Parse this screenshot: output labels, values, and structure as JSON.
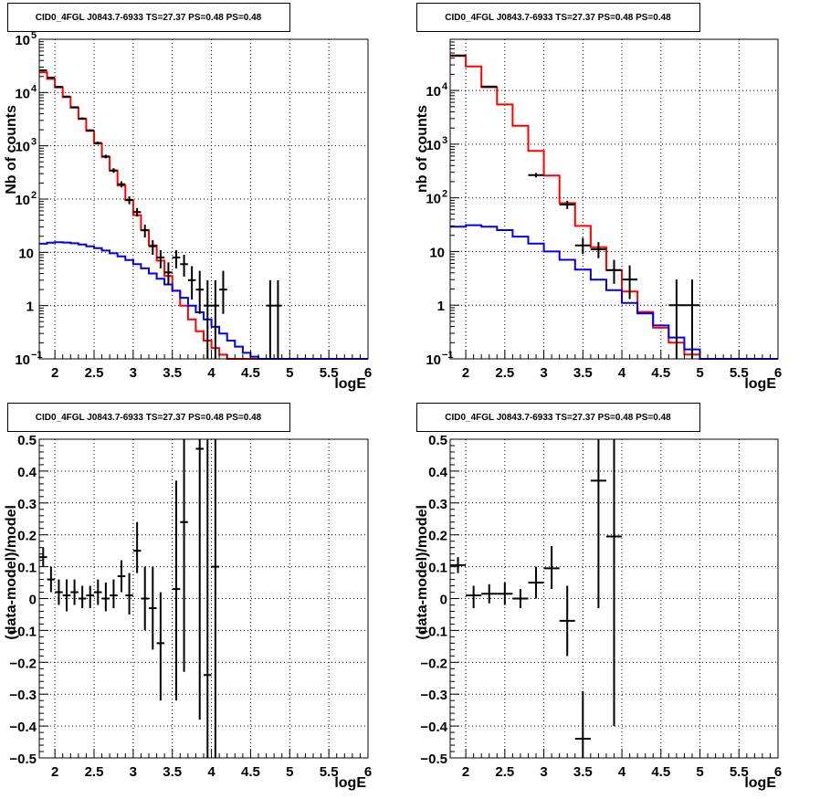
{
  "chart_data": [
    {
      "type": "histogram",
      "title": "CID0_4FGL J0843.7-6933 TS=27.37 PS=0.48 PS=0.48",
      "xlabel": "logE",
      "ylabel": "Nb of counts",
      "yscale": "log",
      "xlim": [
        1.8,
        6.0
      ],
      "ylim": [
        0.1,
        100000
      ],
      "grid": true,
      "xticks": [
        {
          "v": 2,
          "t": "2"
        },
        {
          "v": 2.5,
          "t": "2.5"
        },
        {
          "v": 3,
          "t": "3"
        },
        {
          "v": 3.5,
          "t": "3.5"
        },
        {
          "v": 4,
          "t": "4"
        },
        {
          "v": 4.5,
          "t": "4.5"
        },
        {
          "v": 5,
          "t": "5"
        },
        {
          "v": 5.5,
          "t": "5.5"
        },
        {
          "v": 6,
          "t": "6"
        }
      ],
      "yticks": [
        {
          "v": 0.1,
          "b": "10",
          "e": "−1"
        },
        {
          "v": 1,
          "b": "1",
          "e": ""
        },
        {
          "v": 10,
          "b": "10",
          "e": ""
        },
        {
          "v": 100,
          "b": "10",
          "e": "2"
        },
        {
          "v": 1000,
          "b": "10",
          "e": "3"
        },
        {
          "v": 10000,
          "b": "10",
          "e": "4"
        },
        {
          "v": 100000,
          "b": "10",
          "e": "5"
        }
      ],
      "series": [
        {
          "role": "model-total",
          "color": "#ff0000",
          "x0": 1.8,
          "dx": 0.1,
          "values": [
            24000,
            18000,
            12500,
            8200,
            5200,
            3200,
            1900,
            1100,
            620,
            340,
            180,
            95,
            50,
            26,
            13.5,
            7.0,
            3.6,
            1.9,
            1.0,
            0.55,
            0.33,
            0.22,
            0.16,
            0.12,
            0.1,
            0.1,
            0.1,
            0.1,
            0.1,
            0.1,
            0.1,
            0.1,
            0.1,
            0.1,
            0.1,
            0.1,
            0.1,
            0.1,
            0.1,
            0.1,
            0.1,
            0.1
          ]
        },
        {
          "role": "model-source",
          "color": "#0000ee",
          "x0": 1.8,
          "dx": 0.1,
          "values": [
            14.5,
            15.2,
            15.5,
            15.3,
            14.8,
            14.0,
            13.0,
            12.0,
            10.8,
            9.6,
            8.4,
            7.2,
            6.0,
            5.0,
            4.0,
            3.2,
            2.5,
            1.9,
            1.4,
            1.0,
            0.75,
            0.55,
            0.4,
            0.3,
            0.22,
            0.17,
            0.13,
            0.11,
            0.1,
            0.1,
            0.1,
            0.1,
            0.1,
            0.1,
            0.1,
            0.1,
            0.1,
            0.1,
            0.1,
            0.1,
            0.1,
            0.1
          ]
        }
      ],
      "points": [
        {
          "x": 1.85,
          "y": 26000,
          "lo": 25000,
          "hi": 27000
        },
        {
          "x": 1.95,
          "y": 19000,
          "lo": 18300,
          "hi": 19700
        },
        {
          "x": 2.05,
          "y": 12800,
          "lo": 12300,
          "hi": 13300
        },
        {
          "x": 2.15,
          "y": 8400,
          "lo": 8100,
          "hi": 8700
        },
        {
          "x": 2.25,
          "y": 5300,
          "lo": 5100,
          "hi": 5500
        },
        {
          "x": 2.35,
          "y": 3250,
          "lo": 3100,
          "hi": 3400
        },
        {
          "x": 2.45,
          "y": 1950,
          "lo": 1860,
          "hi": 2040
        },
        {
          "x": 2.55,
          "y": 1130,
          "lo": 1060,
          "hi": 1200
        },
        {
          "x": 2.65,
          "y": 630,
          "lo": 580,
          "hi": 680
        },
        {
          "x": 2.75,
          "y": 345,
          "lo": 310,
          "hi": 380
        },
        {
          "x": 2.85,
          "y": 190,
          "lo": 165,
          "hi": 215
        },
        {
          "x": 2.95,
          "y": 96,
          "lo": 80,
          "hi": 112
        },
        {
          "x": 3.05,
          "y": 57,
          "lo": 47,
          "hi": 68
        },
        {
          "x": 3.15,
          "y": 26,
          "lo": 19,
          "hi": 33
        },
        {
          "x": 3.25,
          "y": 13,
          "lo": 9,
          "hi": 17
        },
        {
          "x": 3.35,
          "y": 8,
          "lo": 5,
          "hi": 11
        },
        {
          "x": 3.45,
          "y": 4.2,
          "lo": 2.4,
          "hi": 6.5
        },
        {
          "x": 3.55,
          "y": 8,
          "lo": 5,
          "hi": 11
        },
        {
          "x": 3.65,
          "y": 6,
          "lo": 3.5,
          "hi": 9
        },
        {
          "x": 3.75,
          "y": 3,
          "lo": 1.3,
          "hi": 5.5
        },
        {
          "x": 3.85,
          "y": 2,
          "lo": 0.7,
          "hi": 4.5
        },
        {
          "x": 3.95,
          "y": 1,
          "lo": 0.1,
          "hi": 3.0
        },
        {
          "x": 4.05,
          "y": 1,
          "lo": 0.1,
          "hi": 3.0
        },
        {
          "x": 4.15,
          "y": 2,
          "lo": 0.7,
          "hi": 4.5
        },
        {
          "x": 4.75,
          "y": 1,
          "lo": 0.1,
          "hi": 3.0
        },
        {
          "x": 4.85,
          "y": 1,
          "lo": 0.1,
          "hi": 3.0
        }
      ],
      "xbar": 0.05
    },
    {
      "type": "histogram",
      "title": "CID0_4FGL J0843.7-6933 TS=27.37 PS=0.48 PS=0.48",
      "xlabel": "logE",
      "ylabel": "nb of counts",
      "yscale": "log",
      "xlim": [
        1.8,
        6.0
      ],
      "ylim": [
        0.1,
        90000
      ],
      "grid": true,
      "xticks": [
        {
          "v": 2,
          "t": "2"
        },
        {
          "v": 2.5,
          "t": "2.5"
        },
        {
          "v": 3,
          "t": "3"
        },
        {
          "v": 3.5,
          "t": "3.5"
        },
        {
          "v": 4,
          "t": "4"
        },
        {
          "v": 4.5,
          "t": "4.5"
        },
        {
          "v": 5,
          "t": "5"
        },
        {
          "v": 5.5,
          "t": "5.5"
        },
        {
          "v": 6,
          "t": "6"
        }
      ],
      "yticks": [
        {
          "v": 0.1,
          "b": "10",
          "e": "−1"
        },
        {
          "v": 1,
          "b": "1",
          "e": ""
        },
        {
          "v": 10,
          "b": "10",
          "e": ""
        },
        {
          "v": 100,
          "b": "10",
          "e": "2"
        },
        {
          "v": 1000,
          "b": "10",
          "e": "3"
        },
        {
          "v": 10000,
          "b": "10",
          "e": "4"
        }
      ],
      "series": [
        {
          "role": "model-total",
          "color": "#ff0000",
          "x0": 1.8,
          "dx": 0.2,
          "values": [
            44000,
            28000,
            11500,
            5500,
            2200,
            750,
            260,
            80,
            30,
            12,
            4.5,
            1.8,
            0.75,
            0.38,
            0.2,
            0.12,
            0.1,
            0.1,
            0.1,
            0.1,
            0.1
          ]
        },
        {
          "role": "model-source",
          "color": "#0000ee",
          "x0": 1.8,
          "dx": 0.2,
          "values": [
            29,
            31,
            29,
            25,
            19,
            14,
            10,
            7,
            4.6,
            3.0,
            1.9,
            1.1,
            0.7,
            0.42,
            0.25,
            0.15,
            0.1,
            0.1,
            0.1,
            0.1,
            0.1
          ]
        }
      ],
      "points": [
        {
          "x": 1.9,
          "y": 45000,
          "lo": 43500,
          "hi": 46500
        },
        {
          "x": 2.3,
          "y": 11800,
          "lo": 11300,
          "hi": 12300
        },
        {
          "x": 2.9,
          "y": 265,
          "lo": 240,
          "hi": 290
        },
        {
          "x": 3.3,
          "y": 75,
          "lo": 62,
          "hi": 88
        },
        {
          "x": 3.5,
          "y": 13,
          "lo": 9,
          "hi": 18
        },
        {
          "x": 3.7,
          "y": 11,
          "lo": 7.5,
          "hi": 15
        },
        {
          "x": 3.9,
          "y": 4.5,
          "lo": 2.5,
          "hi": 7
        },
        {
          "x": 4.1,
          "y": 3,
          "lo": 1.3,
          "hi": 5.5
        },
        {
          "x": 4.7,
          "y": 1,
          "lo": 0.1,
          "hi": 3
        },
        {
          "x": 4.9,
          "y": 1,
          "lo": 0.1,
          "hi": 3
        }
      ],
      "xbar": 0.1
    },
    {
      "type": "scatter",
      "title": "CID0_4FGL J0843.7-6933 TS=27.37 PS=0.48 PS=0.48",
      "xlabel": "logE",
      "ylabel": "(data-model)/model",
      "yscale": "linear",
      "xlim": [
        1.8,
        6.0
      ],
      "ylim": [
        -0.5,
        0.5
      ],
      "grid": true,
      "xticks": [
        {
          "v": 2,
          "t": "2"
        },
        {
          "v": 2.5,
          "t": "2.5"
        },
        {
          "v": 3,
          "t": "3"
        },
        {
          "v": 3.5,
          "t": "3.5"
        },
        {
          "v": 4,
          "t": "4"
        },
        {
          "v": 4.5,
          "t": "4.5"
        },
        {
          "v": 5,
          "t": "5"
        },
        {
          "v": 5.5,
          "t": "5.5"
        },
        {
          "v": 6,
          "t": "6"
        }
      ],
      "yticks": [
        {
          "v": -0.5,
          "t": "−0.5"
        },
        {
          "v": -0.4,
          "t": "−0.4"
        },
        {
          "v": -0.3,
          "t": "−0.3"
        },
        {
          "v": -0.2,
          "t": "−0.2"
        },
        {
          "v": -0.1,
          "t": "−0.1"
        },
        {
          "v": 0,
          "t": "0"
        },
        {
          "v": 0.1,
          "t": "0.1"
        },
        {
          "v": 0.2,
          "t": "0.2"
        },
        {
          "v": 0.3,
          "t": "0.3"
        },
        {
          "v": 0.4,
          "t": "0.4"
        },
        {
          "v": 0.5,
          "t": "0.5"
        }
      ],
      "points": [
        {
          "x": 1.85,
          "y": 0.13,
          "lo": 0.1,
          "hi": 0.16
        },
        {
          "x": 1.95,
          "y": 0.06,
          "lo": 0.02,
          "hi": 0.1
        },
        {
          "x": 2.05,
          "y": 0.02,
          "lo": -0.02,
          "hi": 0.06
        },
        {
          "x": 2.15,
          "y": 0.01,
          "lo": -0.04,
          "hi": 0.06
        },
        {
          "x": 2.25,
          "y": 0.02,
          "lo": -0.02,
          "hi": 0.06
        },
        {
          "x": 2.35,
          "y": 0.0,
          "lo": -0.03,
          "hi": 0.04
        },
        {
          "x": 2.45,
          "y": 0.01,
          "lo": -0.03,
          "hi": 0.04
        },
        {
          "x": 2.55,
          "y": 0.02,
          "lo": -0.02,
          "hi": 0.06
        },
        {
          "x": 2.65,
          "y": 0.0,
          "lo": -0.04,
          "hi": 0.05
        },
        {
          "x": 2.75,
          "y": 0.01,
          "lo": -0.03,
          "hi": 0.06
        },
        {
          "x": 2.85,
          "y": 0.07,
          "lo": 0.02,
          "hi": 0.12
        },
        {
          "x": 2.95,
          "y": 0.01,
          "lo": -0.05,
          "hi": 0.08
        },
        {
          "x": 3.05,
          "y": 0.15,
          "lo": 0.08,
          "hi": 0.24
        },
        {
          "x": 3.15,
          "y": 0.0,
          "lo": -0.1,
          "hi": 0.1
        },
        {
          "x": 3.25,
          "y": -0.03,
          "lo": -0.16,
          "hi": 0.1
        },
        {
          "x": 3.35,
          "y": -0.14,
          "lo": -0.32,
          "hi": 0.02
        },
        {
          "x": 3.55,
          "y": 0.03,
          "lo": -0.32,
          "hi": 0.37
        },
        {
          "x": 3.65,
          "y": 0.24,
          "lo": -0.23,
          "hi": 0.5
        },
        {
          "x": 3.85,
          "y": 0.47,
          "lo": -0.38,
          "hi": 0.5
        },
        {
          "x": 3.95,
          "y": -0.24,
          "lo": -0.5,
          "hi": 0.5
        },
        {
          "x": 4.05,
          "y": 0.1,
          "lo": -0.5,
          "hi": 0.5
        }
      ],
      "xbar": 0.05
    },
    {
      "type": "scatter",
      "title": "CID0_4FGL J0843.7-6933 TS=27.37 PS=0.48 PS=0.48",
      "xlabel": "logE",
      "ylabel": "(data-model)/model",
      "yscale": "linear",
      "xlim": [
        1.8,
        6.0
      ],
      "ylim": [
        -0.5,
        0.5
      ],
      "grid": true,
      "xticks": [
        {
          "v": 2,
          "t": "2"
        },
        {
          "v": 2.5,
          "t": "2.5"
        },
        {
          "v": 3,
          "t": "3"
        },
        {
          "v": 3.5,
          "t": "3.5"
        },
        {
          "v": 4,
          "t": "4"
        },
        {
          "v": 4.5,
          "t": "4.5"
        },
        {
          "v": 5,
          "t": "5"
        },
        {
          "v": 5.5,
          "t": "5.5"
        },
        {
          "v": 6,
          "t": "6"
        }
      ],
      "yticks": [
        {
          "v": -0.5,
          "t": "−0.5"
        },
        {
          "v": -0.4,
          "t": "−0.4"
        },
        {
          "v": -0.3,
          "t": "−0.3"
        },
        {
          "v": -0.2,
          "t": "−0.2"
        },
        {
          "v": -0.1,
          "t": "−0.1"
        },
        {
          "v": 0,
          "t": "0"
        },
        {
          "v": 0.1,
          "t": "0.1"
        },
        {
          "v": 0.2,
          "t": "0.2"
        },
        {
          "v": 0.3,
          "t": "0.3"
        },
        {
          "v": 0.4,
          "t": "0.4"
        },
        {
          "v": 0.5,
          "t": "0.5"
        }
      ],
      "points": [
        {
          "x": 1.9,
          "y": 0.105,
          "lo": 0.08,
          "hi": 0.13
        },
        {
          "x": 2.1,
          "y": 0.01,
          "lo": -0.03,
          "hi": 0.04
        },
        {
          "x": 2.3,
          "y": 0.015,
          "lo": -0.015,
          "hi": 0.045
        },
        {
          "x": 2.5,
          "y": 0.015,
          "lo": -0.02,
          "hi": 0.05
        },
        {
          "x": 2.7,
          "y": 0.0,
          "lo": -0.03,
          "hi": 0.03
        },
        {
          "x": 2.9,
          "y": 0.05,
          "lo": 0.0,
          "hi": 0.1
        },
        {
          "x": 3.1,
          "y": 0.095,
          "lo": 0.03,
          "hi": 0.165
        },
        {
          "x": 3.3,
          "y": -0.07,
          "lo": -0.18,
          "hi": 0.04
        },
        {
          "x": 3.5,
          "y": -0.44,
          "lo": -0.5,
          "hi": -0.29
        },
        {
          "x": 3.7,
          "y": 0.37,
          "lo": -0.03,
          "hi": 0.5
        },
        {
          "x": 3.9,
          "y": 0.195,
          "lo": -0.4,
          "hi": 0.5
        }
      ],
      "xbar": 0.1
    }
  ]
}
